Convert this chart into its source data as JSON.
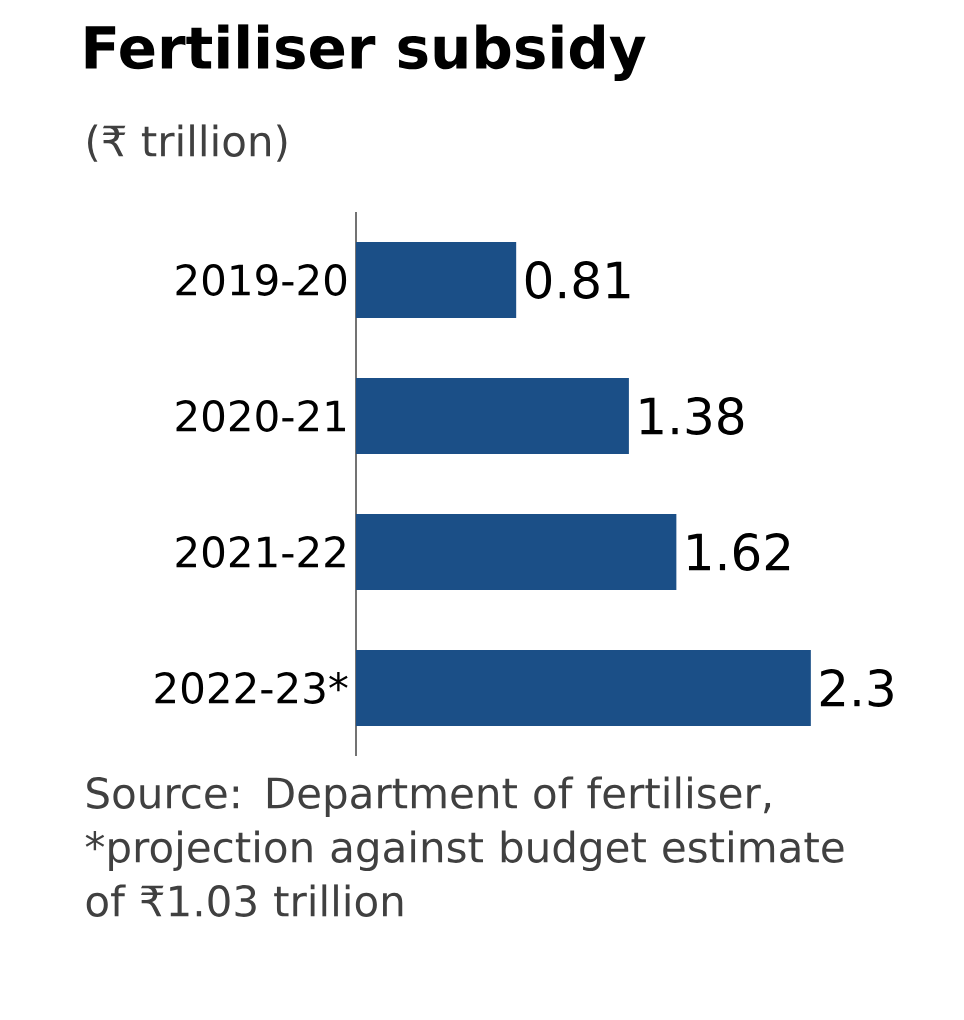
{
  "chart_data": {
    "type": "bar",
    "orientation": "horizontal",
    "title": "Fertiliser subsidy",
    "subtitle": "(₹ trillion)",
    "categories": [
      "2019-20",
      "2020-21",
      "2021-22",
      "2022-23*"
    ],
    "values": [
      0.81,
      1.38,
      1.62,
      2.3
    ],
    "value_labels": [
      "0.81",
      "1.38",
      "1.62",
      "2.3"
    ],
    "color": "#1b4f87",
    "annotations": [
      "Source: Department of fertiliser, *projection against budget estimate of ₹1.03 trillion"
    ]
  }
}
